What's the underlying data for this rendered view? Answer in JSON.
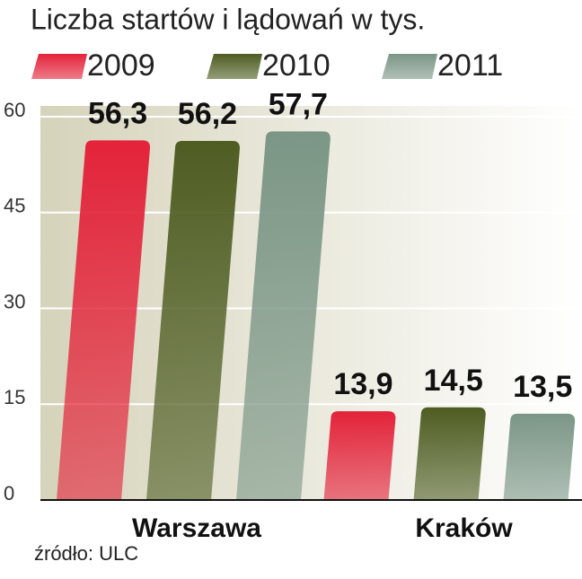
{
  "chart_data": {
    "type": "bar",
    "title": "Liczba startów i lądowań w tys.",
    "categories": [
      "Warszawa",
      "Kraków"
    ],
    "series": [
      {
        "name": "2009",
        "color": "#e3233a",
        "values": [
          56.3,
          13.9
        ],
        "value_labels": [
          "56,3",
          "13,9"
        ]
      },
      {
        "name": "2010",
        "color": "#4e5d22",
        "values": [
          56.2,
          14.5
        ],
        "value_labels": [
          "56,2",
          "14,5"
        ]
      },
      {
        "name": "2011",
        "color": "#7b9686",
        "values": [
          57.7,
          13.5
        ],
        "value_labels": [
          "57,7",
          "13,5"
        ]
      }
    ],
    "ylim": [
      0,
      60
    ],
    "yticks": [
      0,
      15,
      30,
      45,
      60
    ],
    "grid": true,
    "source": "źródło: ULC"
  }
}
